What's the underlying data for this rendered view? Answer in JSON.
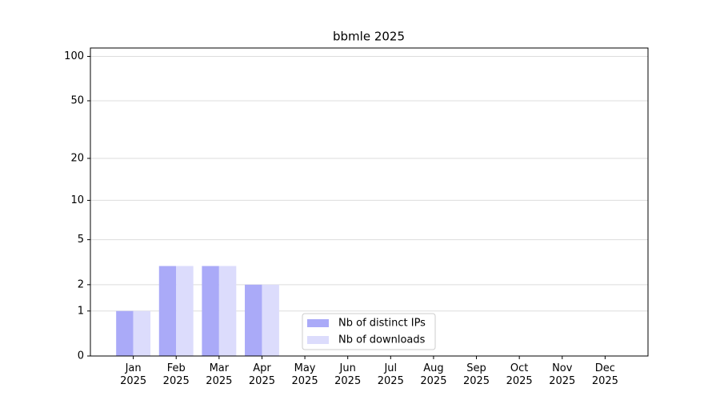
{
  "chart_data": {
    "type": "bar",
    "title": "bbmle 2025",
    "y_scale": "log1p",
    "categories": [
      "Jan\n2025",
      "Feb\n2025",
      "Mar\n2025",
      "Apr\n2025",
      "May\n2025",
      "Jun\n2025",
      "Jul\n2025",
      "Aug\n2025",
      "Sep\n2025",
      "Oct\n2025",
      "Nov\n2025",
      "Dec\n2025"
    ],
    "series": [
      {
        "name": "Nb of distinct IPs",
        "color": "#aaaaf8",
        "values": [
          1,
          3,
          3,
          2,
          0,
          0,
          0,
          0,
          0,
          0,
          0,
          0
        ]
      },
      {
        "name": "Nb of downloads",
        "color": "#dcdcfc",
        "values": [
          1,
          3,
          3,
          2,
          0,
          0,
          0,
          0,
          0,
          0,
          0,
          0
        ]
      }
    ],
    "ylim": [
      0,
      114
    ],
    "yticks": [
      0,
      1,
      2,
      5,
      10,
      20,
      50,
      100
    ],
    "grid": true,
    "legend": "lower center"
  }
}
